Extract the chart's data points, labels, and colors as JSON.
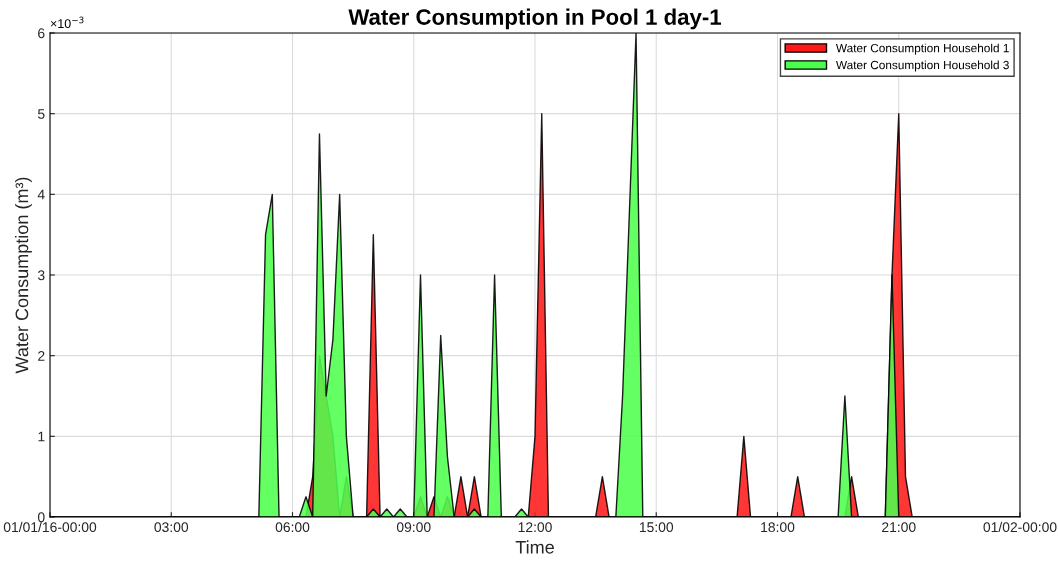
{
  "chart_data": {
    "type": "area",
    "title": "Water Consumption in Pool 1 day-1",
    "xlabel": "Time",
    "ylabel": "Water Consumption (m³)",
    "xlim": [
      0,
      24
    ],
    "xticks": [
      {
        "value": 0,
        "label": "01/01/16-00:00"
      },
      {
        "value": 3,
        "label": "03:00"
      },
      {
        "value": 6,
        "label": "06:00"
      },
      {
        "value": 9,
        "label": "09:00"
      },
      {
        "value": 12,
        "label": "12:00"
      },
      {
        "value": 15,
        "label": "15:00"
      },
      {
        "value": 18,
        "label": "18:00"
      },
      {
        "value": 21,
        "label": "21:00"
      },
      {
        "value": 24,
        "label": "01/02-00:00"
      }
    ],
    "ylim": [
      0,
      6
    ],
    "yticks": [
      0,
      1,
      2,
      3,
      4,
      5,
      6
    ],
    "annotations": [
      "×10$^{−3}$"
    ],
    "grid": true,
    "legend": "top right",
    "series": [
      {
        "name": "Water Consumption Household 1",
        "color": "#ff1a1a",
        "x": [
          0,
          6.333,
          6.5,
          6.667,
          6.833,
          7.0,
          7.167,
          7.333,
          7.5,
          7.833,
          8.0,
          8.167,
          9.0,
          9.167,
          9.333,
          9.5,
          9.667,
          9.833,
          10.0,
          10.167,
          10.333,
          10.5,
          10.667,
          11.833,
          12.0,
          12.167,
          12.333,
          13.5,
          13.667,
          13.833,
          17.0,
          17.167,
          17.333,
          18.333,
          18.5,
          18.667,
          19.667,
          19.833,
          20.0,
          20.667,
          20.833,
          21.0,
          21.167,
          21.333,
          24
        ],
        "values": [
          0,
          0,
          0.5,
          2,
          1.5,
          1,
          0,
          0.5,
          0,
          0,
          3.5,
          0,
          0,
          0.25,
          0,
          0.25,
          0,
          0.25,
          0,
          0.5,
          0,
          0.5,
          0,
          0,
          1,
          5,
          0,
          0,
          0.5,
          0,
          0,
          1,
          0,
          0,
          0.5,
          0,
          0,
          0.5,
          0,
          0,
          3,
          5,
          0.5,
          0,
          0
        ]
      },
      {
        "name": "Water Consumption Household 3",
        "color": "#4dff4d",
        "x": [
          0,
          5.167,
          5.333,
          5.5,
          5.667,
          6.167,
          6.333,
          6.5,
          6.667,
          6.833,
          7.0,
          7.167,
          7.333,
          7.5,
          7.833,
          8.0,
          8.167,
          8.333,
          8.5,
          8.667,
          8.833,
          9.0,
          9.167,
          9.333,
          9.5,
          9.667,
          9.833,
          10.0,
          10.333,
          10.5,
          10.667,
          10.833,
          11.0,
          11.167,
          11.5,
          11.667,
          11.833,
          14.0,
          14.167,
          14.5,
          14.667,
          19.5,
          19.667,
          19.833,
          20.667,
          20.833,
          21.0,
          24
        ],
        "values": [
          0,
          0,
          3.5,
          4,
          0,
          0,
          0.25,
          0,
          4.75,
          1.5,
          2.2,
          4,
          1,
          0,
          0,
          0.1,
          0,
          0.1,
          0,
          0.1,
          0,
          0,
          3,
          0,
          0,
          2.25,
          0.75,
          0,
          0,
          0.1,
          0,
          0,
          3,
          0,
          0,
          0.1,
          0,
          0,
          1.5,
          6,
          0,
          0,
          1.5,
          0,
          0,
          3,
          0,
          0
        ]
      }
    ]
  }
}
